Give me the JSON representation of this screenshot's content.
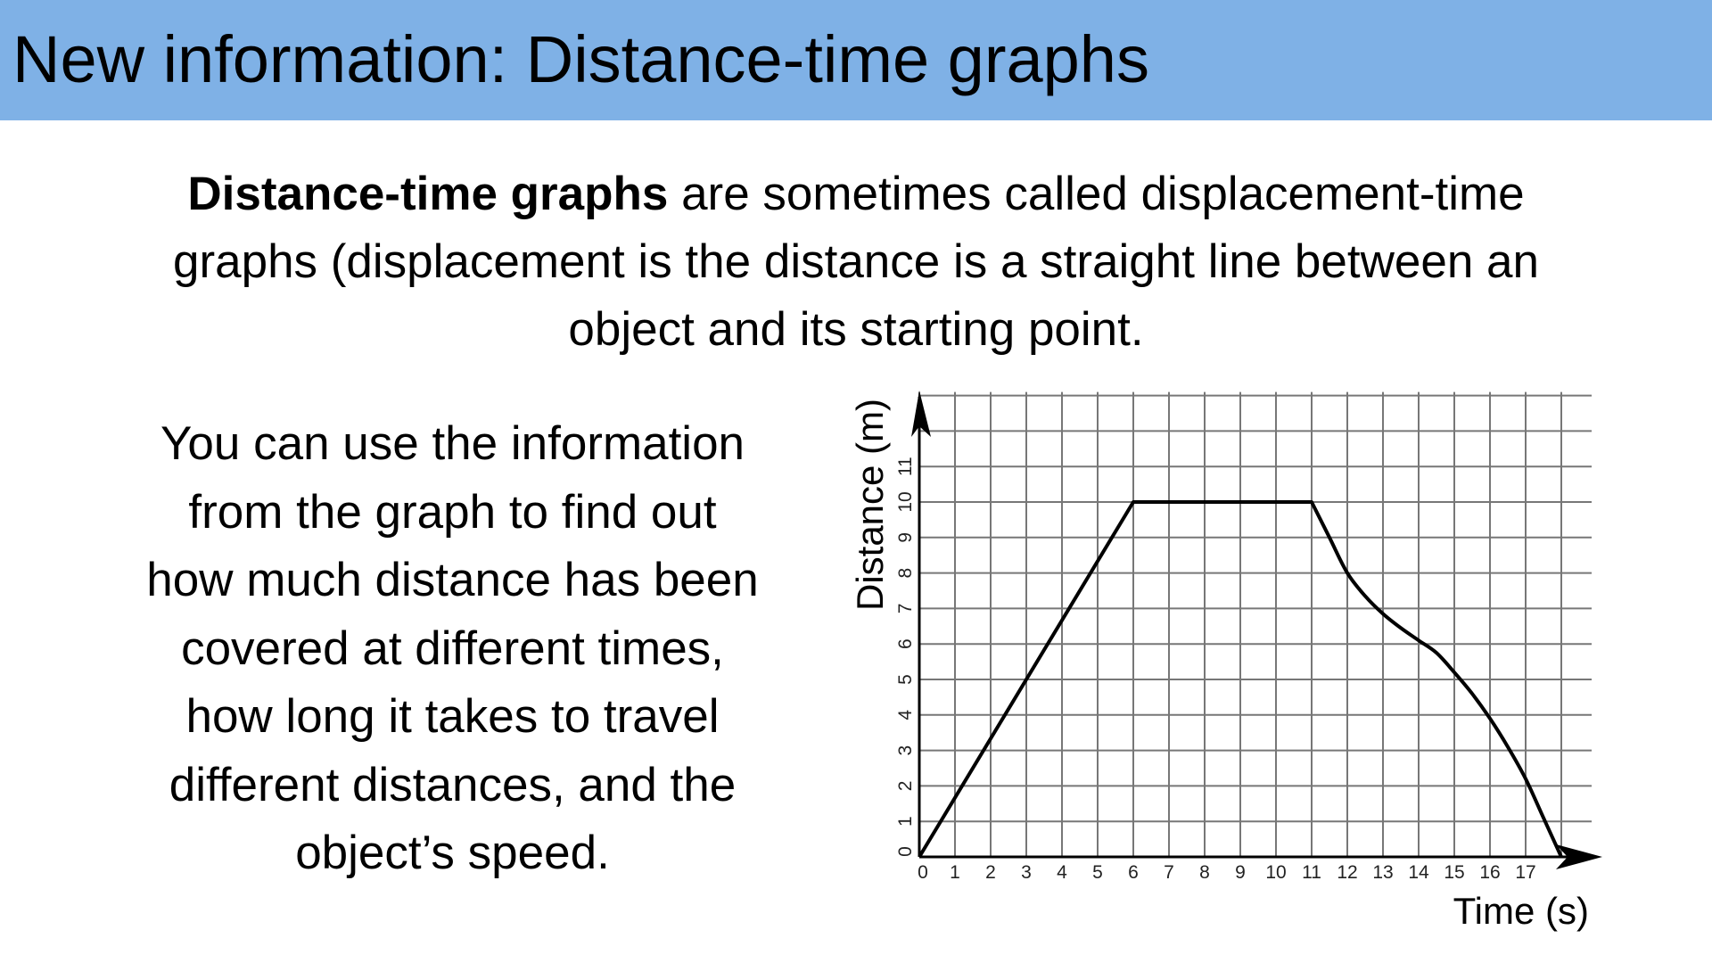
{
  "header": {
    "title": "New information: Distance-time graphs",
    "background_color": "#7fb1e6"
  },
  "intro": {
    "bold_term": "Distance-time graphs",
    "line1_rest": " are sometimes called displacement-time",
    "line2": "graphs (displacement is the distance is a straight line between an",
    "line3": "object and its starting point."
  },
  "side_text": {
    "lines": [
      "You can use the information",
      "from the graph to find out",
      "how much distance has been",
      "covered at different times,",
      "how long it takes to travel",
      "different distances, and the",
      "object’s speed."
    ]
  },
  "chart_data": {
    "type": "line",
    "xlabel": "Time (s)",
    "ylabel": "Distance (m)",
    "x_ticks": [
      "0",
      "1",
      "2",
      "3",
      "4",
      "5",
      "6",
      "7",
      "8",
      "9",
      "10",
      "11",
      "12",
      "13",
      "14",
      "15",
      "16",
      "17"
    ],
    "y_ticks": [
      "0",
      "1",
      "2",
      "3",
      "4",
      "5",
      "6",
      "7",
      "8",
      "9",
      "10",
      "11"
    ],
    "xlim": [
      0,
      18
    ],
    "ylim": [
      0,
      13
    ],
    "grid": true,
    "series": [
      {
        "x": [
          0,
          6,
          11,
          11.5,
          12,
          12.5,
          13,
          13.5,
          14,
          14.5,
          15,
          15.5,
          16,
          16.5,
          17,
          17.5,
          18
        ],
        "y": [
          0,
          10,
          10,
          9.0,
          8.0,
          7.35,
          6.85,
          6.45,
          6.1,
          5.75,
          5.2,
          4.6,
          3.9,
          3.1,
          2.2,
          1.1,
          0
        ]
      }
    ]
  }
}
